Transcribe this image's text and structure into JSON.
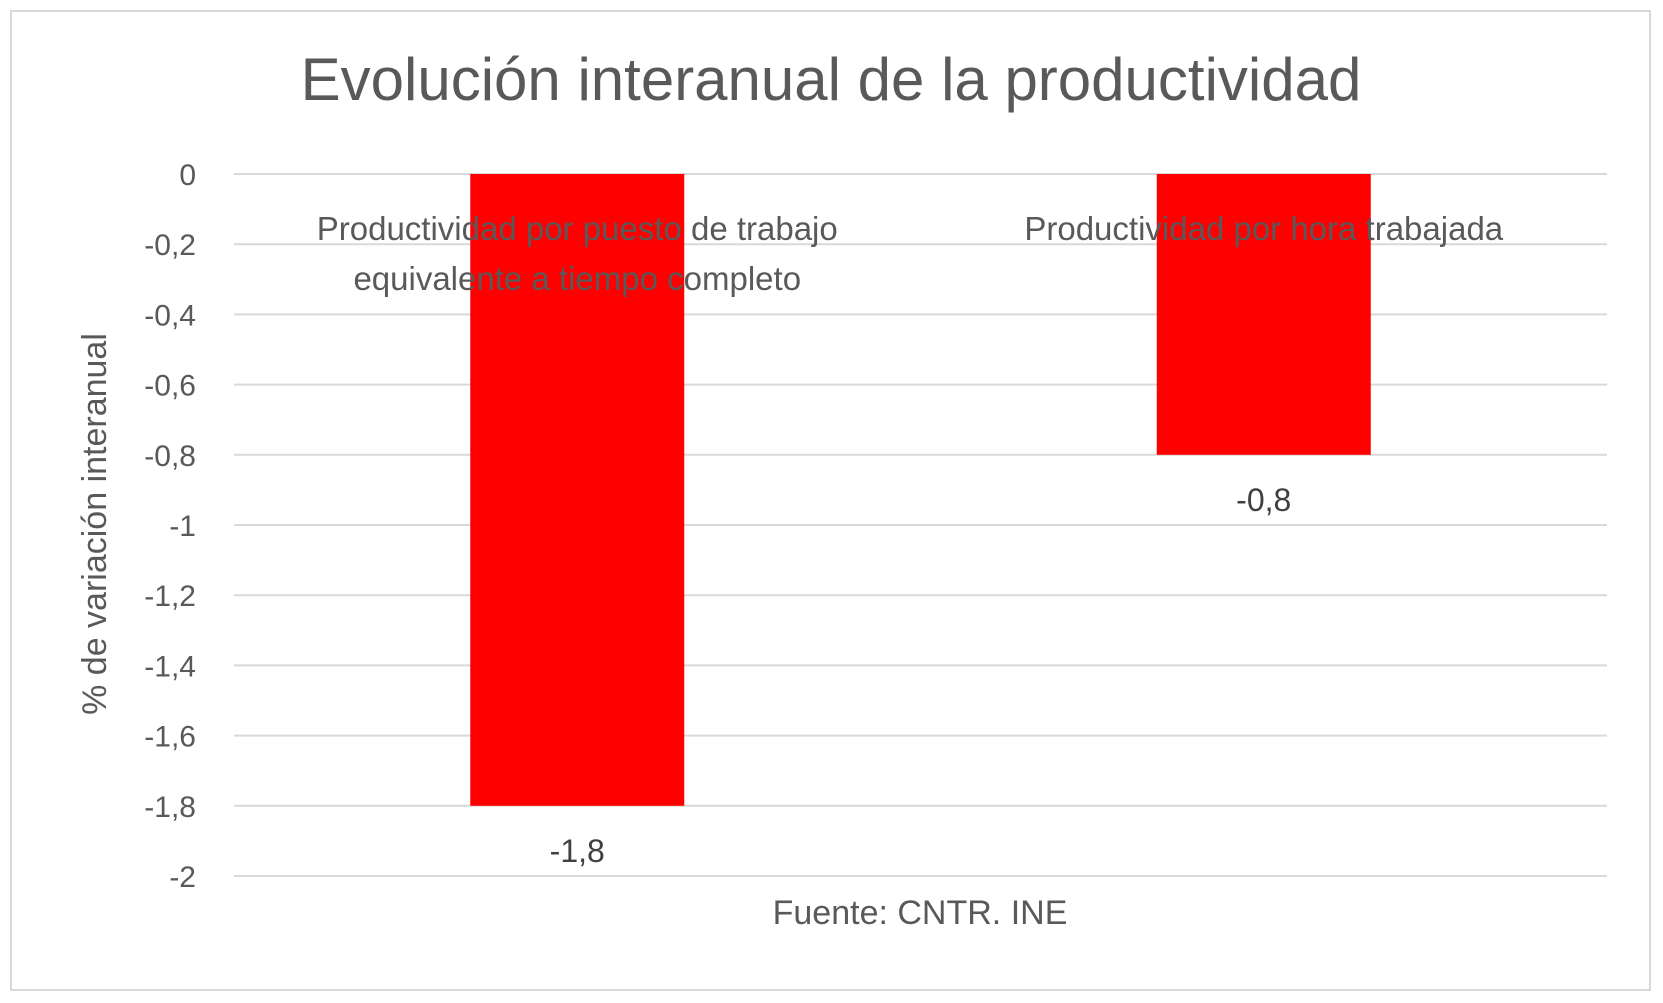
{
  "chart_data": {
    "type": "bar",
    "title": "Evolución interanual de la productividad",
    "xlabel": "",
    "ylabel": "% de variación interanual",
    "categories": [
      [
        "Productividad por puesto de trabajo",
        "equivalente a tiempo completo"
      ],
      [
        "Productividad por hora trabajada"
      ]
    ],
    "values": [
      -1.8,
      -0.8
    ],
    "data_labels": [
      "-1,8",
      "-0,8"
    ],
    "ylim": [
      -2,
      0
    ],
    "yticks": [
      0,
      -0.2,
      -0.4,
      -0.6,
      -0.8,
      -1,
      -1.2,
      -1.4,
      -1.6,
      -1.8,
      -2
    ],
    "ytick_labels": [
      "0",
      "-0,2",
      "-0,4",
      "-0,6",
      "-0,8",
      "-1",
      "-1,2",
      "-1,4",
      "-1,6",
      "-1,8",
      "-2"
    ],
    "grid": true,
    "legend": "none",
    "source": "Fuente: CNTR. INE",
    "colors": {
      "bar": "#ff0000",
      "grid": "#d9d9d9",
      "text": "#595959",
      "border": "#d9d9d9"
    }
  }
}
